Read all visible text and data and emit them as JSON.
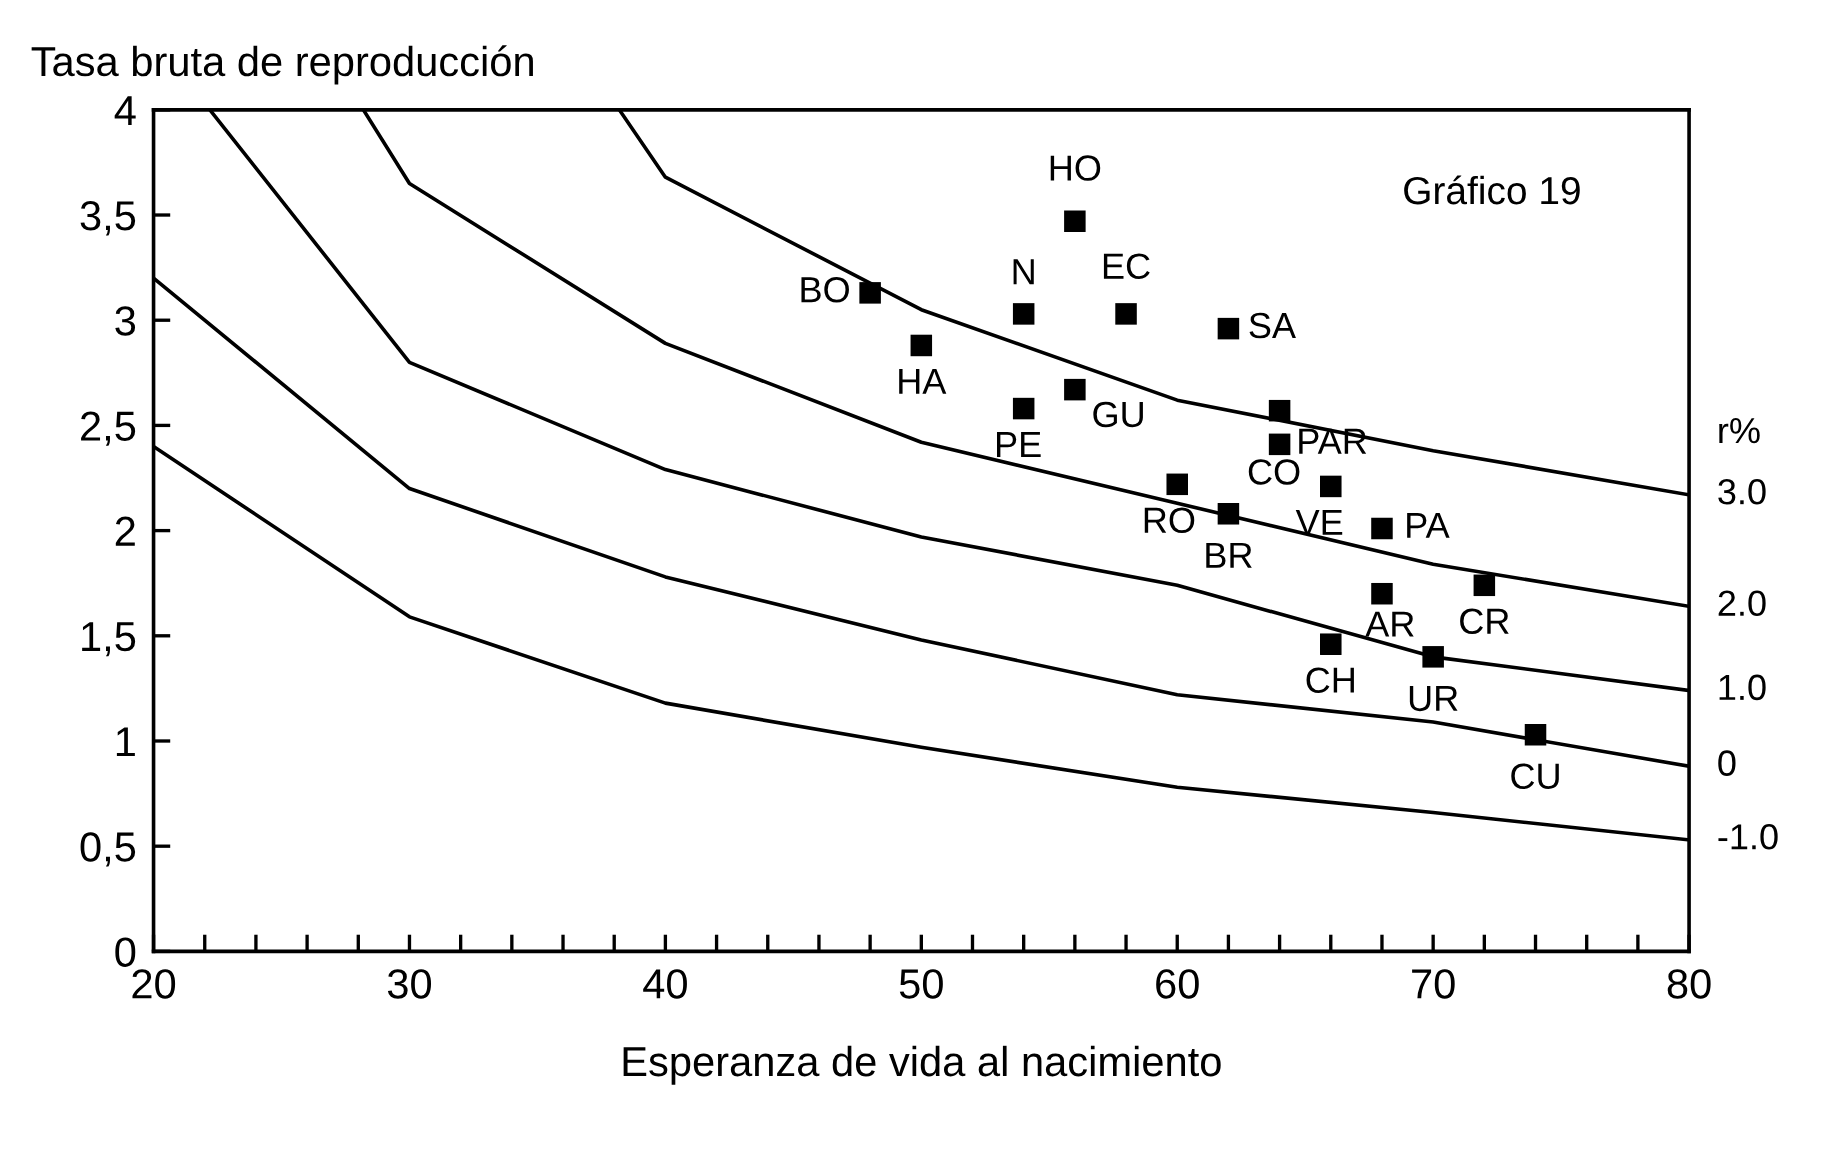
{
  "chart_data": {
    "type": "scatter",
    "ylabel": "Tasa bruta de reproducción",
    "xlabel": "Esperanza de vida al nacimiento",
    "legend_title": "r%",
    "grid": false,
    "marker": "square",
    "xlim": [
      20,
      80
    ],
    "ylim": [
      0,
      4
    ],
    "xticks": [
      20,
      {
        "value": 22,
        "label": null
      },
      {
        "value": 24,
        "label": null
      },
      {
        "value": 26,
        "label": null
      },
      {
        "value": 28,
        "label": null
      },
      30,
      {
        "value": 32,
        "label": null
      },
      {
        "value": 34,
        "label": null
      },
      {
        "value": 36,
        "label": null
      },
      {
        "value": 38,
        "label": null
      },
      40,
      {
        "value": 42,
        "label": null
      },
      {
        "value": 44,
        "label": null
      },
      {
        "value": 46,
        "label": null
      },
      {
        "value": 48,
        "label": null
      },
      50,
      {
        "value": 52,
        "label": null
      },
      {
        "value": 54,
        "label": null
      },
      {
        "value": 56,
        "label": null
      },
      {
        "value": 58,
        "label": null
      },
      60,
      {
        "value": 62,
        "label": null
      },
      {
        "value": 64,
        "label": null
      },
      {
        "value": 66,
        "label": null
      },
      {
        "value": 68,
        "label": null
      },
      70,
      {
        "value": 72,
        "label": null
      },
      {
        "value": 74,
        "label": null
      },
      {
        "value": 76,
        "label": null
      },
      {
        "value": 78,
        "label": null
      },
      80
    ],
    "yticks": [
      0,
      {
        "value": 0.5,
        "label": "0,5"
      },
      1,
      {
        "value": 1.5,
        "label": "1,5"
      },
      2,
      {
        "value": 2.5,
        "label": "2,5"
      },
      3,
      {
        "value": 3.5,
        "label": "3,5"
      },
      4
    ],
    "series": [
      {
        "type": "line",
        "name": "3.0",
        "color": "#000000",
        "marker": "none",
        "x": [
          38.2,
          40,
          50,
          60,
          70,
          80
        ],
        "values": [
          4.0,
          3.68,
          3.05,
          2.62,
          2.38,
          2.17
        ]
      },
      {
        "type": "line",
        "name": "2.0",
        "color": "#000000",
        "marker": "none",
        "x": [
          28.2,
          30,
          40,
          50,
          60,
          70,
          80
        ],
        "values": [
          4.0,
          3.65,
          2.89,
          2.42,
          2.13,
          1.84,
          1.64
        ]
      },
      {
        "type": "line",
        "name": "1.0",
        "color": "#000000",
        "marker": "none",
        "x": [
          22.2,
          30,
          40,
          50,
          60,
          70,
          80
        ],
        "values": [
          4.0,
          2.8,
          2.29,
          1.97,
          1.74,
          1.4,
          1.24
        ]
      },
      {
        "type": "line",
        "name": "0",
        "color": "#000000",
        "marker": "none",
        "x": [
          20,
          30,
          40,
          50,
          60,
          70,
          80
        ],
        "values": [
          3.2,
          2.2,
          1.78,
          1.48,
          1.22,
          1.09,
          0.88
        ]
      },
      {
        "type": "line",
        "name": "-1.0",
        "color": "#000000",
        "marker": "none",
        "x": [
          20,
          30,
          40,
          50,
          60,
          70,
          80
        ],
        "values": [
          2.4,
          1.59,
          1.18,
          0.97,
          0.78,
          0.66,
          0.53
        ]
      },
      {
        "color": "#000000",
        "x": [
          56,
          48,
          54,
          58,
          62,
          50,
          56,
          54,
          64,
          64,
          60,
          62,
          66,
          68,
          68,
          72,
          66,
          70,
          74
        ],
        "values": [
          3.47,
          3.13,
          3.03,
          3.03,
          2.96,
          2.88,
          2.67,
          2.58,
          2.57,
          2.41,
          2.22,
          2.08,
          2.21,
          2.01,
          1.7,
          1.74,
          1.46,
          1.4,
          1.03
        ]
      }
    ],
    "annotations": [
      {
        "text": "HO",
        "x": 56,
        "y": 3.47
      },
      {
        "text": "BO",
        "x": 48,
        "y": 3.13
      },
      {
        "text": "N",
        "x": 54,
        "y": 3.03
      },
      {
        "text": "EC",
        "x": 58,
        "y": 3.03
      },
      {
        "text": "SA",
        "x": 62,
        "y": 2.96
      },
      {
        "text": "HA",
        "x": 50,
        "y": 2.88
      },
      {
        "text": "GU",
        "x": 56,
        "y": 2.67
      },
      {
        "text": "PE",
        "x": 54,
        "y": 2.58
      },
      {
        "text": "PAR",
        "x": 64,
        "y": 2.41
      },
      {
        "text": "CO",
        "x": 64,
        "y": 2.41
      },
      {
        "text": "RO",
        "x": 60,
        "y": 2.22
      },
      {
        "text": "BR",
        "x": 62,
        "y": 2.08
      },
      {
        "text": "VE",
        "x": 66,
        "y": 2.21
      },
      {
        "text": "PA",
        "x": 68,
        "y": 2.01
      },
      {
        "text": "AR",
        "x": 68,
        "y": 1.7
      },
      {
        "text": "CR",
        "x": 72,
        "y": 1.74
      },
      {
        "text": "CH",
        "x": 66,
        "y": 1.46
      },
      {
        "text": "UR",
        "x": 70,
        "y": 1.4
      },
      {
        "text": "CU",
        "x": 74,
        "y": 1.03
      },
      "Gráfico 19"
    ]
  }
}
